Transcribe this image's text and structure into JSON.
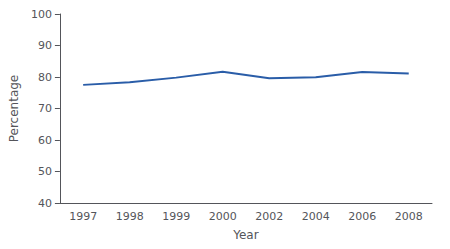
{
  "chart_data": {
    "type": "line",
    "xlabel": "Year",
    "ylabel": "Percentage",
    "categories": [
      "1997",
      "1998",
      "1999",
      "2000",
      "2002",
      "2004",
      "2006",
      "2008"
    ],
    "values": [
      77.5,
      78.3,
      79.8,
      81.7,
      79.6,
      79.9,
      81.6,
      81.1
    ],
    "color": "#2a5da8",
    "ylim": [
      40,
      100
    ],
    "yticks": [
      40,
      50,
      60,
      70,
      80,
      90,
      100
    ],
    "grid": false
  }
}
